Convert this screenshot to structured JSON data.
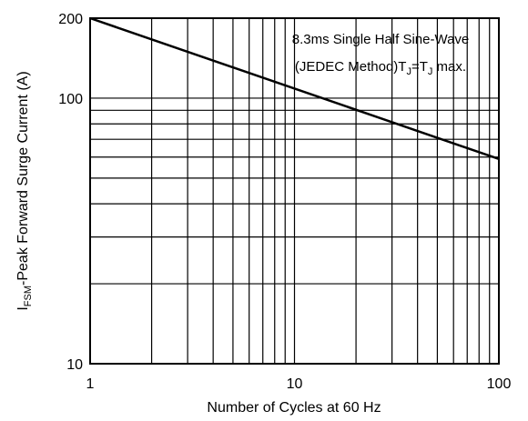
{
  "chart_data": {
    "type": "line",
    "x_scale": "log",
    "y_scale": "log",
    "xlim": [
      1,
      100
    ],
    "ylim": [
      10,
      200
    ],
    "x_ticks": [
      1,
      10,
      100
    ],
    "x_tick_labels": [
      "1",
      "10",
      "100"
    ],
    "y_ticks": [
      10,
      100,
      200
    ],
    "y_tick_labels": [
      "10",
      "100",
      "200"
    ],
    "grid": true,
    "xlabel": "Number of Cycles at 60 Hz",
    "ylabel": {
      "prefix": "I",
      "subscript": "FSM",
      "suffix": "-Peak Forward Surge Current (A)"
    },
    "annotation": {
      "line1": "8.3ms Single Half Sine-Wave",
      "line2_parts": [
        "(JEDEC Method)T",
        "J",
        "=T",
        "J",
        " max."
      ]
    },
    "series": [
      {
        "x": [
          1,
          100
        ],
        "y": [
          200,
          59
        ]
      }
    ]
  }
}
